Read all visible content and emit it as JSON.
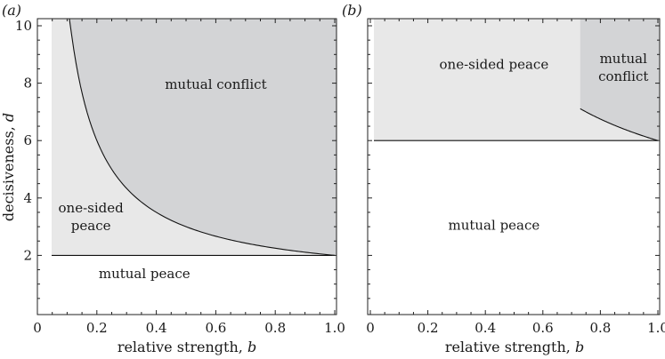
{
  "chart_data": [
    {
      "panel_label": "(a)",
      "type": "area",
      "xlabel": "relative strength, ",
      "xlabel_var": "b",
      "ylabel": "decisiveness, ",
      "ylabel_var": "d",
      "xlim": [
        0,
        1.0
      ],
      "ylim": [
        0,
        10
      ],
      "x_ticks": [
        "0",
        "0.2",
        "0.4",
        "0.6",
        "0.8",
        "1.0"
      ],
      "y_ticks": [
        "2",
        "4",
        "6",
        "8",
        "10"
      ],
      "regions": [
        {
          "name": "mutual peace",
          "lines": [
            "mutual peace"
          ],
          "anchor": {
            "x": 0.36,
            "y": 1.2
          },
          "fill": "#ffffff"
        },
        {
          "name": "one-sided peace",
          "lines": [
            "one-sided",
            "peace"
          ],
          "anchor": {
            "x": 0.18,
            "y": 3.5
          },
          "fill": "#e8e8e8"
        },
        {
          "name": "mutual conflict",
          "lines": [
            "mutual conflict"
          ],
          "anchor": {
            "x": 0.6,
            "y": 7.8
          },
          "fill": "#d3d4d6"
        }
      ],
      "boundaries": {
        "one_sided_threshold_d": 2.0,
        "conflict_curve": {
          "formula": "d = 2*(1+b)/(2*b)",
          "x_start": 0.1,
          "x_end": 1.0
        }
      }
    },
    {
      "panel_label": "(b)",
      "type": "area",
      "xlabel": "relative strength, ",
      "xlabel_var": "b",
      "xlim": [
        0,
        1.0
      ],
      "ylim": [
        0,
        10
      ],
      "x_ticks": [
        "0",
        "0.2",
        "0.4",
        "0.6",
        "0.8",
        "1.0"
      ],
      "regions": [
        {
          "name": "mutual peace",
          "lines": [
            "mutual peace"
          ],
          "anchor": {
            "x": 0.43,
            "y": 2.9
          },
          "fill": "#ffffff"
        },
        {
          "name": "one-sided peace",
          "lines": [
            "one-sided peace"
          ],
          "anchor": {
            "x": 0.43,
            "y": 8.5
          },
          "fill": "#e8e8e8"
        },
        {
          "name": "mutual conflict",
          "lines": [
            "mutual",
            "conflict"
          ],
          "anchor": {
            "x": 0.88,
            "y": 8.7
          },
          "fill": "#d3d4d6"
        }
      ],
      "boundaries": {
        "one_sided_threshold_d": 6.0,
        "conflict_curve": {
          "formula": "d = 6*(1+b)/(2*b)",
          "x_start": 0.73,
          "x_end": 1.0
        }
      }
    }
  ]
}
